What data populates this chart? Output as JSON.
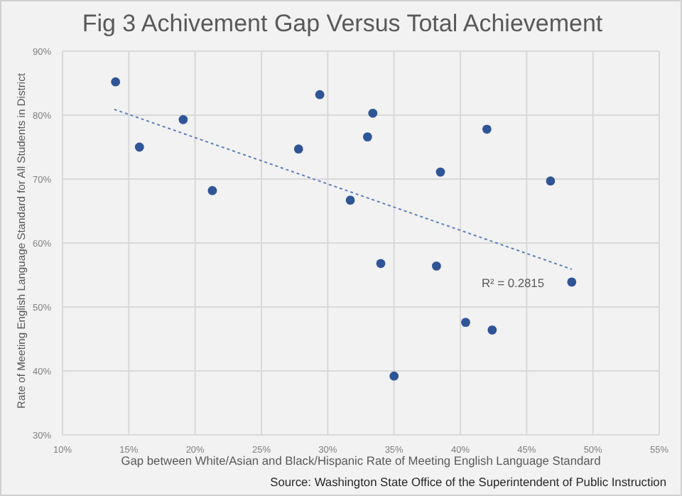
{
  "chart_data": {
    "type": "scatter",
    "title": "Fig 3 Achivement Gap Versus Total Achievement",
    "xlabel": "Gap between White/Asian and Black/Hispanic Rate of Meeting English Language Standard",
    "ylabel": "Rate of Meeting English Language Standard for All Students in District",
    "x": [
      14.0,
      15.8,
      19.1,
      21.3,
      27.8,
      29.4,
      33.4,
      33.0,
      42.0,
      38.5,
      46.8,
      31.7,
      34.0,
      38.2,
      48.4,
      40.4,
      42.4,
      35.0
    ],
    "series": [
      {
        "color": "#2f5597",
        "marker": "circle",
        "values": [
          85.2,
          75.0,
          79.3,
          68.2,
          74.7,
          83.2,
          80.3,
          76.6,
          77.8,
          71.1,
          69.7,
          66.7,
          56.8,
          56.4,
          53.9,
          47.6,
          46.4,
          39.2
        ]
      },
      {
        "type": "line",
        "color": "#5b7fbf",
        "line_style": "dotted",
        "marker": "none",
        "x": [
          13.9,
          48.4
        ],
        "values": [
          80.9,
          55.9
        ]
      }
    ],
    "xlim": [
      10,
      55
    ],
    "xticks": [
      {
        "value": 10,
        "label": "10%"
      },
      {
        "value": 15,
        "label": "15%"
      },
      {
        "value": 20,
        "label": "20%"
      },
      {
        "value": 25,
        "label": "25%"
      },
      {
        "value": 30,
        "label": "30%"
      },
      {
        "value": 35,
        "label": "35%"
      },
      {
        "value": 40,
        "label": "40%"
      },
      {
        "value": 45,
        "label": "45%"
      },
      {
        "value": 50,
        "label": "50%"
      },
      {
        "value": 55,
        "label": "55%"
      }
    ],
    "ylim": [
      30,
      90
    ],
    "yticks": [
      {
        "value": 30,
        "label": "30%"
      },
      {
        "value": 40,
        "label": "40%"
      },
      {
        "value": 50,
        "label": "50%"
      },
      {
        "value": 60,
        "label": "60%"
      },
      {
        "value": 70,
        "label": "70%"
      },
      {
        "value": 80,
        "label": "80%"
      },
      {
        "value": 90,
        "label": "90%"
      }
    ],
    "grid": true,
    "legend": false,
    "annotations": [
      "R² = 0.2815",
      "Source: Washington State Office of the Superintendent of Public Instruction"
    ]
  }
}
